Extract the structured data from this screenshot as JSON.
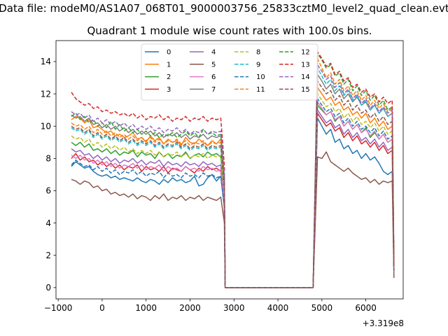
{
  "figure": {
    "suptitle": "Data file: modeM0/AS1A07_068T01_9000003756_25833cztM0_level2_quad_clean.evt",
    "title": "Quadrant 1 module wise count rates with 100.0s bins."
  },
  "chart_data": {
    "type": "line",
    "title": "Quadrant 1 module wise count rates with 100.0s bins.",
    "xlabel": "",
    "ylabel": "",
    "x_offset_label": "+3.319e8",
    "xlim": [
      -1050,
      6850
    ],
    "ylim": [
      -0.7,
      15.3
    ],
    "x_ticks": [
      -1000,
      0,
      1000,
      2000,
      3000,
      4000,
      5000,
      6000
    ],
    "x_tick_labels": [
      "−1000",
      "0",
      "1000",
      "2000",
      "3000",
      "4000",
      "5000",
      "6000"
    ],
    "y_ticks": [
      0,
      2,
      4,
      6,
      8,
      10,
      12,
      14
    ],
    "y_tick_labels": [
      "0",
      "2",
      "4",
      "6",
      "8",
      "10",
      "12",
      "14"
    ],
    "grid": false,
    "legend": {
      "placement": "top-center",
      "columns": 4
    },
    "segments": [
      {
        "x_start": -700,
        "x_end": 2700,
        "step": 100
      },
      {
        "x_start": 4900,
        "x_end": 6500,
        "step": 100
      }
    ],
    "gap": {
      "x": [
        2800,
        4800
      ],
      "value": 0
    },
    "series": [
      {
        "name": "0",
        "color": "#1f77b4",
        "dash": "solid",
        "seg1": [
          7.5,
          7.8,
          7.6,
          7.4,
          7.5,
          7.2,
          7.0,
          6.9,
          7.0,
          6.8,
          6.9,
          6.7,
          6.8,
          6.7,
          6.6,
          6.8,
          6.6,
          6.5,
          6.7,
          6.6,
          6.4,
          6.7,
          6.5,
          6.8,
          6.6,
          6.7,
          6.5,
          6.6,
          6.9,
          6.3,
          6.4,
          6.8,
          7.0,
          6.6,
          6.9
        ],
        "seg2": [
          10.5,
          10.0,
          9.5,
          9.8,
          9.0,
          9.2,
          8.6,
          8.8,
          8.3,
          8.5,
          8.0,
          8.3,
          7.9,
          8.1,
          7.7,
          7.2,
          7.0
        ],
        "end": [
          7.2,
          1.0
        ]
      },
      {
        "name": "1",
        "color": "#ff7f0e",
        "dash": "solid",
        "seg1": [
          10.4,
          10.6,
          10.5,
          10.2,
          10.4,
          9.9,
          10.0,
          9.8,
          9.6,
          9.7,
          9.4,
          9.5,
          9.3,
          9.4,
          9.6,
          9.2,
          9.3,
          9.0,
          9.4,
          9.1,
          9.3,
          8.9,
          9.2,
          9.0,
          9.1,
          8.8,
          9.3,
          9.0,
          8.9,
          9.2,
          9.0,
          8.8,
          9.1,
          8.9,
          9.2
        ],
        "seg2": [
          12.4,
          12.0,
          11.6,
          11.8,
          11.3,
          11.5,
          11.0,
          11.2,
          10.7,
          10.9,
          10.5,
          10.8,
          10.2,
          10.5,
          10.0,
          10.3,
          9.8
        ],
        "end": [
          10.0,
          1.1
        ]
      },
      {
        "name": "2",
        "color": "#2ca02c",
        "dash": "solid",
        "seg1": [
          9.0,
          8.8,
          9.0,
          8.7,
          8.9,
          8.5,
          8.6,
          8.4,
          8.6,
          8.3,
          8.5,
          8.2,
          8.4,
          8.3,
          8.5,
          8.1,
          8.4,
          8.2,
          8.3,
          8.0,
          8.4,
          8.1,
          8.3,
          8.0,
          8.2,
          8.1,
          8.4,
          8.0,
          8.2,
          8.3,
          8.1,
          8.4,
          8.2,
          8.3,
          8.1
        ],
        "seg2": [
          11.3,
          11.0,
          10.7,
          10.9,
          10.3,
          10.6,
          10.0,
          10.3,
          9.8,
          10.1,
          9.6,
          9.9,
          9.3,
          9.6,
          9.2,
          9.5,
          9.0
        ],
        "end": [
          9.2,
          1.0
        ]
      },
      {
        "name": "3",
        "color": "#d62728",
        "dash": "solid",
        "seg1": [
          8.0,
          8.3,
          7.9,
          8.1,
          7.8,
          7.9,
          7.6,
          7.8,
          7.5,
          7.7,
          7.4,
          7.6,
          7.3,
          7.5,
          7.4,
          7.6,
          7.2,
          7.5,
          7.3,
          7.4,
          7.2,
          7.5,
          7.1,
          7.4,
          7.3,
          7.2,
          7.5,
          7.3,
          7.1,
          7.4,
          7.2,
          7.5,
          7.3,
          7.4,
          7.2
        ],
        "seg2": [
          10.8,
          10.4,
          10.0,
          10.2,
          9.7,
          9.9,
          9.3,
          9.6,
          9.1,
          9.4,
          8.9,
          9.1,
          8.7,
          9.0,
          8.5,
          8.8,
          8.3
        ],
        "end": [
          8.5,
          1.0
        ]
      },
      {
        "name": "4",
        "color": "#9467bd",
        "dash": "solid",
        "seg1": [
          8.6,
          8.4,
          8.5,
          8.2,
          8.3,
          8.0,
          8.2,
          7.9,
          8.1,
          7.8,
          8.0,
          7.7,
          7.9,
          7.8,
          8.0,
          7.7,
          7.9,
          7.6,
          7.8,
          7.7,
          7.9,
          7.5,
          7.8,
          7.6,
          7.7,
          7.5,
          7.8,
          7.6,
          7.7,
          7.5,
          7.8,
          7.6,
          7.7,
          7.5,
          7.6
        ],
        "seg2": [
          11.0,
          10.6,
          10.2,
          10.4,
          9.9,
          10.1,
          9.5,
          9.8,
          9.3,
          9.6,
          9.1,
          9.3,
          8.9,
          9.2,
          8.7,
          9.0,
          8.5
        ],
        "end": [
          8.7,
          1.0
        ]
      },
      {
        "name": "5",
        "color": "#8c564b",
        "dash": "solid",
        "seg1": [
          6.7,
          6.6,
          6.4,
          6.6,
          6.5,
          6.2,
          6.3,
          6.0,
          6.1,
          5.8,
          5.9,
          5.7,
          5.8,
          5.6,
          5.8,
          5.5,
          5.7,
          5.6,
          5.4,
          5.7,
          5.5,
          5.8,
          5.4,
          5.6,
          5.5,
          5.7,
          5.4,
          5.6,
          5.5,
          5.7,
          5.4,
          5.6,
          5.5,
          5.4,
          5.6
        ],
        "seg2": [
          8.1,
          8.0,
          8.4,
          7.8,
          7.6,
          7.4,
          7.2,
          7.4,
          7.1,
          6.9,
          6.7,
          6.8,
          6.5,
          6.7,
          6.4,
          6.6,
          6.5
        ],
        "end": [
          6.6,
          0.6
        ]
      },
      {
        "name": "6",
        "color": "#e377c2",
        "dash": "solid",
        "seg1": [
          8.2,
          8.0,
          8.2,
          7.9,
          8.0,
          7.7,
          7.9,
          7.6,
          7.8,
          7.5,
          7.7,
          7.4,
          7.6,
          7.5,
          7.7,
          7.4,
          7.6,
          7.3,
          7.5,
          7.4,
          7.6,
          7.2,
          7.5,
          7.3,
          7.4,
          7.2,
          7.5,
          7.3,
          7.4,
          7.2,
          7.5,
          7.3,
          7.4,
          7.2,
          7.3
        ],
        "seg2": [
          11.5,
          11.1,
          10.7,
          10.9,
          10.4,
          10.6,
          10.0,
          10.3,
          9.8,
          10.1,
          9.6,
          9.8,
          9.4,
          9.7,
          9.2,
          9.5,
          9.0
        ],
        "end": [
          9.2,
          1.0
        ]
      },
      {
        "name": "7",
        "color": "#7f7f7f",
        "dash": "solid",
        "seg1": [
          10.7,
          10.5,
          10.6,
          10.3,
          10.5,
          10.1,
          10.2,
          9.9,
          10.1,
          9.8,
          10.0,
          9.7,
          9.9,
          9.6,
          9.8,
          9.5,
          9.7,
          9.5,
          9.7,
          9.4,
          9.6,
          9.3,
          9.5,
          9.4,
          9.6,
          9.3,
          9.5,
          9.2,
          9.4,
          9.3,
          9.5,
          9.2,
          9.4,
          9.3,
          9.4
        ],
        "seg2": [
          13.2,
          12.8,
          12.3,
          12.6,
          12.0,
          12.3,
          11.7,
          12.0,
          11.5,
          11.8,
          11.3,
          11.5,
          11.0,
          11.3,
          10.8,
          11.1,
          10.6
        ],
        "end": [
          10.8,
          1.2
        ]
      },
      {
        "name": "8",
        "color": "#bcbd22",
        "dash": "dashed",
        "seg1": [
          9.4,
          9.2,
          9.3,
          9.0,
          9.2,
          8.8,
          9.0,
          8.7,
          8.9,
          8.6,
          8.8,
          8.5,
          8.7,
          8.4,
          8.6,
          8.3,
          8.5,
          8.3,
          8.5,
          8.2,
          8.4,
          8.1,
          8.3,
          8.2,
          8.4,
          8.1,
          8.3,
          8.0,
          8.2,
          8.1,
          8.3,
          8.0,
          8.2,
          8.1,
          8.2
        ],
        "seg2": [
          12.0,
          11.6,
          11.2,
          11.4,
          10.9,
          11.1,
          10.5,
          10.8,
          10.3,
          10.6,
          10.1,
          10.3,
          9.9,
          10.2,
          9.7,
          10.0,
          9.5
        ],
        "end": [
          9.7,
          1.1
        ]
      },
      {
        "name": "9",
        "color": "#17becf",
        "dash": "dashed",
        "seg1": [
          9.9,
          9.7,
          9.8,
          9.5,
          9.7,
          9.3,
          9.5,
          9.2,
          9.4,
          9.1,
          9.3,
          9.0,
          9.2,
          8.9,
          9.1,
          8.8,
          9.0,
          8.8,
          9.0,
          8.7,
          8.9,
          8.6,
          8.8,
          8.7,
          8.9,
          8.6,
          8.8,
          8.5,
          8.7,
          8.6,
          8.8,
          8.5,
          8.7,
          8.6,
          8.7
        ],
        "seg2": [
          13.6,
          13.1,
          12.6,
          12.9,
          12.2,
          12.5,
          11.9,
          12.2,
          11.6,
          11.9,
          11.3,
          11.6,
          11.0,
          11.3,
          10.8,
          11.1,
          10.6
        ],
        "end": [
          10.8,
          1.2
        ]
      },
      {
        "name": "10",
        "color": "#1f77b4",
        "dash": "dashed",
        "seg1": [
          7.6,
          7.9,
          7.7,
          7.5,
          7.6,
          7.3,
          7.5,
          7.2,
          7.4,
          7.1,
          7.3,
          7.0,
          7.2,
          7.1,
          7.3,
          7.0,
          7.2,
          6.9,
          7.1,
          7.0,
          7.2,
          6.8,
          7.1,
          6.9,
          7.0,
          6.8,
          7.1,
          6.9,
          7.0,
          6.8,
          7.1,
          6.9,
          7.0,
          6.8,
          6.9
        ],
        "seg2": [
          11.7,
          11.3,
          10.9,
          11.1,
          10.6,
          10.8,
          10.2,
          10.5,
          10.0,
          10.3,
          9.8,
          10.0,
          9.6,
          9.9,
          9.4,
          9.7,
          9.2
        ],
        "end": [
          9.4,
          1.0
        ]
      },
      {
        "name": "11",
        "color": "#ff7f0e",
        "dash": "dashed",
        "seg1": [
          10.2,
          10.0,
          10.1,
          9.8,
          10.0,
          9.6,
          9.8,
          9.5,
          9.7,
          9.4,
          9.6,
          9.3,
          9.5,
          9.2,
          9.4,
          9.1,
          9.3,
          9.1,
          9.3,
          9.0,
          9.2,
          8.9,
          9.1,
          9.0,
          9.2,
          8.9,
          9.1,
          8.8,
          9.0,
          8.9,
          9.1,
          8.8,
          9.0,
          8.9,
          9.0
        ],
        "seg2": [
          14.2,
          13.6,
          13.0,
          13.3,
          12.6,
          12.9,
          12.2,
          12.5,
          11.9,
          12.2,
          11.6,
          11.9,
          11.3,
          11.6,
          11.1,
          11.4,
          10.9
        ],
        "end": [
          11.1,
          1.2
        ]
      },
      {
        "name": "12",
        "color": "#2ca02c",
        "dash": "dashed",
        "seg1": [
          10.6,
          10.8,
          10.4,
          10.6,
          10.2,
          10.4,
          10.0,
          10.2,
          9.9,
          10.3,
          9.8,
          10.1,
          9.7,
          9.9,
          9.6,
          9.8,
          9.5,
          9.7,
          9.4,
          9.6,
          9.3,
          9.5,
          9.4,
          9.6,
          9.3,
          9.5,
          9.7,
          9.4,
          9.6,
          9.3,
          9.8,
          9.5,
          9.6,
          9.4,
          9.5
        ],
        "seg2": [
          14.5,
          14.1,
          13.6,
          13.8,
          13.1,
          13.3,
          12.6,
          12.9,
          12.2,
          12.5,
          11.9,
          12.2,
          11.6,
          11.9,
          11.3,
          11.6,
          11.0
        ],
        "end": [
          11.2,
          1.3
        ]
      },
      {
        "name": "13",
        "color": "#d62728",
        "dash": "dashed",
        "seg1": [
          12.1,
          11.7,
          11.5,
          11.3,
          11.4,
          11.1,
          11.2,
          10.9,
          11.0,
          10.8,
          10.9,
          10.7,
          10.8,
          10.6,
          10.8,
          10.5,
          10.7,
          10.4,
          10.6,
          10.5,
          10.7,
          10.4,
          10.6,
          10.3,
          10.5,
          10.4,
          10.6,
          10.3,
          10.5,
          10.4,
          10.6,
          10.3,
          10.5,
          10.4,
          10.5
        ],
        "seg2": [
          14.6,
          14.2,
          13.7,
          13.9,
          13.2,
          13.4,
          12.8,
          13.0,
          12.4,
          12.6,
          12.1,
          12.3,
          11.8,
          12.0,
          11.5,
          11.8,
          11.4
        ],
        "end": [
          11.6,
          1.4
        ]
      },
      {
        "name": "14",
        "color": "#9467bd",
        "dash": "dashed",
        "seg1": [
          10.9,
          10.7,
          10.8,
          10.5,
          10.7,
          10.3,
          10.5,
          10.2,
          10.4,
          10.1,
          10.3,
          10.0,
          10.2,
          9.9,
          10.1,
          9.8,
          10.0,
          9.8,
          10.0,
          9.7,
          9.9,
          9.6,
          9.8,
          9.7,
          9.9,
          9.6,
          9.8,
          9.5,
          9.7,
          9.6,
          9.8,
          9.5,
          9.7,
          9.6,
          9.7
        ],
        "seg2": [
          13.8,
          13.4,
          12.9,
          13.1,
          12.4,
          12.7,
          12.0,
          12.3,
          11.7,
          12.0,
          11.4,
          11.7,
          11.1,
          11.4,
          10.9,
          11.2,
          10.8
        ],
        "end": [
          11.0,
          1.3
        ]
      },
      {
        "name": "15",
        "color": "#8c564b",
        "dash": "dashed",
        "seg1": [
          10.0,
          9.8,
          9.9,
          9.6,
          9.8,
          9.4,
          9.6,
          9.3,
          9.5,
          9.2,
          9.4,
          9.1,
          9.3,
          9.0,
          9.2,
          8.9,
          9.1,
          8.9,
          9.1,
          8.8,
          9.0,
          8.7,
          8.9,
          8.8,
          9.0,
          8.7,
          8.9,
          8.6,
          8.8,
          8.7,
          8.9,
          8.6,
          8.8,
          8.7,
          8.8
        ],
        "seg2": [
          12.8,
          12.4,
          12.0,
          12.2,
          11.6,
          11.9,
          11.3,
          11.6,
          11.0,
          11.3,
          10.8,
          11.0,
          10.5,
          10.8,
          10.3,
          10.6,
          10.1
        ],
        "end": [
          10.3,
          1.1
        ]
      }
    ]
  }
}
